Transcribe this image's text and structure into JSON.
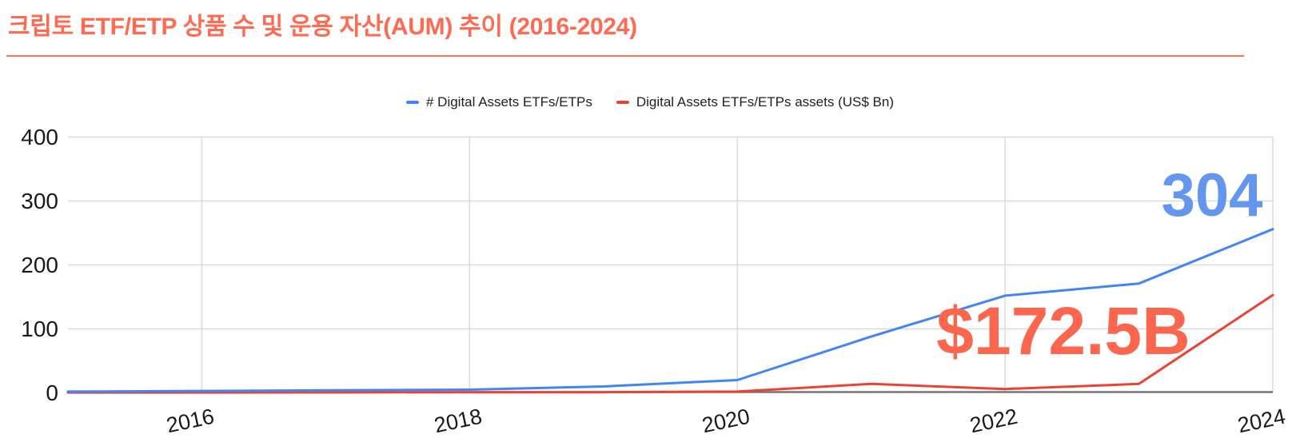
{
  "header": {
    "title": "크립토 ETF/ETP 상품 수 및 운용 자산(AUM) 추이 (2016-2024)"
  },
  "legend": [
    {
      "label": "# Digital Assets ETFs/ETPs",
      "color": "#4285F4"
    },
    {
      "label": "Digital Assets ETFs/ETPs assets (US$ Bn)",
      "color": "#EA4335"
    }
  ],
  "annotations": {
    "count_latest": "304",
    "aum_latest": "$172.5B"
  },
  "colors": {
    "title": "#FF6B52",
    "divider": "#FF7257",
    "count_line": "#4285F4",
    "aum_line": "#EA4335",
    "count_annotation": "#6496EE",
    "aum_annotation": "#FC664F",
    "gridline": "#DBDBDB",
    "axis_baseline": "#757575",
    "tick_text": "#1a1a1a"
  },
  "chart_data": {
    "type": "line",
    "title": "크립토 ETF/ETP 상품 수 및 운용 자산(AUM) 추이 (2016-2024)",
    "x": [
      2015,
      2016,
      2017,
      2018,
      2019,
      2020,
      2021,
      2022,
      2023,
      2024
    ],
    "series": [
      {
        "name": "# Digital Assets ETFs/ETPs",
        "color": "#4285F4",
        "values": [
          2,
          3,
          4,
          5,
          10,
          20,
          88,
          152,
          171,
          256
        ],
        "latest_label": "304"
      },
      {
        "name": "Digital Assets ETFs/ETPs assets (US$ Bn)",
        "color": "#EA4335",
        "values": [
          0.4,
          0.5,
          0.7,
          1,
          1,
          2,
          14,
          6,
          14,
          153
        ],
        "latest_label": "$172.5B"
      }
    ],
    "ylim": [
      0,
      400
    ],
    "y_ticks": [
      400,
      300,
      200,
      100,
      0
    ],
    "x_tick_labels": [
      "2016",
      "2018",
      "2020",
      "2022",
      "2024"
    ],
    "grid": true,
    "legend_position": "top",
    "annotations": [
      {
        "text": "304",
        "series": "# Digital Assets ETFs/ETPs"
      },
      {
        "text": "$172.5B",
        "series": "Digital Assets ETFs/ETPs assets (US$ Bn)"
      }
    ]
  }
}
